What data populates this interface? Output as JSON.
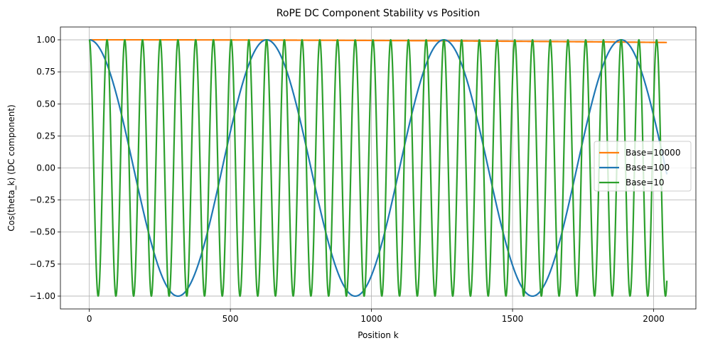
{
  "chart_data": {
    "type": "line",
    "title": "RoPE DC Component Stability vs Position",
    "xlabel": "Position k",
    "ylabel": "Cos(theta_k) (DC component)",
    "xlim": [
      -102.4,
      2149.8
    ],
    "ylim": [
      -1.1,
      1.1
    ],
    "xticks": [
      0,
      500,
      1000,
      1500,
      2000
    ],
    "xtick_labels": [
      "0",
      "500",
      "1000",
      "1500",
      "2000"
    ],
    "yticks": [
      1.0,
      0.75,
      0.5,
      0.25,
      0.0,
      -0.25,
      -0.5,
      -0.75,
      -1.0
    ],
    "ytick_labels": [
      "1.00",
      "0.75",
      "0.50",
      "0.25",
      "0.00",
      "−0.25",
      "−0.50",
      "−0.75",
      "−1.00"
    ],
    "grid": true,
    "legend_position": "center-right",
    "x": {
      "start": 0,
      "end": 2047,
      "step": 1
    },
    "series": [
      {
        "name": "Base=10000",
        "color": "#ff7f0e",
        "formula": "cos(k / 10000)"
      },
      {
        "name": "Base=100",
        "color": "#1f77b4",
        "formula": "cos(k / 100)"
      },
      {
        "name": "Base=10",
        "color": "#2ca02c",
        "formula": "cos(k / 10)"
      }
    ]
  }
}
